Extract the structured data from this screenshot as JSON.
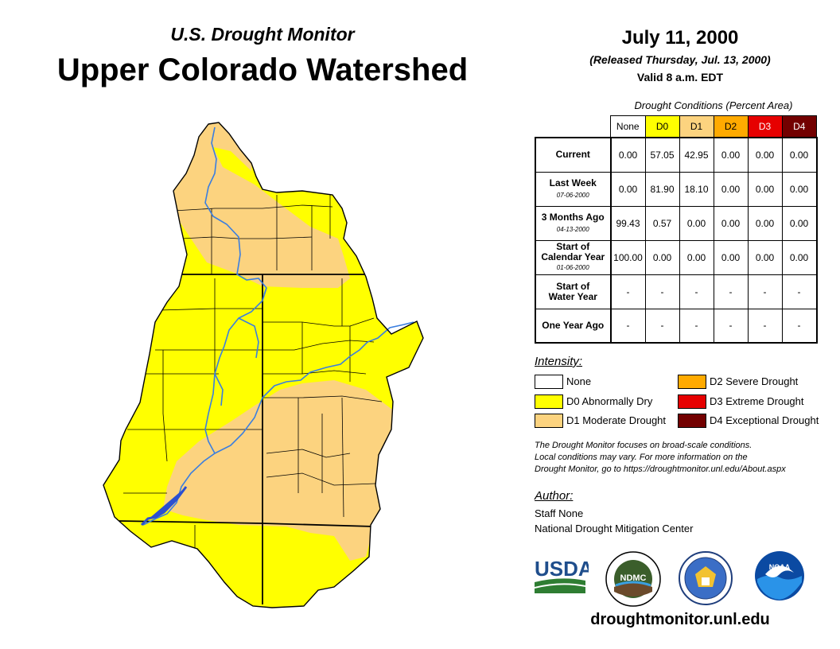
{
  "header": {
    "subtitle": "U.S. Drought Monitor",
    "title": "Upper Colorado Watershed",
    "date": "July 11, 2000",
    "released": "(Released Thursday, Jul. 13, 2000)",
    "valid": "Valid 8 a.m. EDT"
  },
  "table": {
    "caption": "Drought Conditions (Percent Area)",
    "columns": [
      "None",
      "D0",
      "D1",
      "D2",
      "D3",
      "D4"
    ],
    "rows": [
      {
        "label": "Current",
        "date": "",
        "values": [
          "0.00",
          "57.05",
          "42.95",
          "0.00",
          "0.00",
          "0.00"
        ]
      },
      {
        "label": "Last Week",
        "date": "07-06-2000",
        "values": [
          "0.00",
          "81.90",
          "18.10",
          "0.00",
          "0.00",
          "0.00"
        ]
      },
      {
        "label": "3 Months Ago",
        "date": "04-13-2000",
        "values": [
          "99.43",
          "0.57",
          "0.00",
          "0.00",
          "0.00",
          "0.00"
        ]
      },
      {
        "label_line1": "Start of",
        "label_line2": "Calendar Year",
        "date": "01-06-2000",
        "values": [
          "100.00",
          "0.00",
          "0.00",
          "0.00",
          "0.00",
          "0.00"
        ]
      },
      {
        "label_line1": "Start of",
        "label_line2": "Water Year",
        "date": "",
        "values": [
          "-",
          "-",
          "-",
          "-",
          "-",
          "-"
        ]
      },
      {
        "label": "One Year Ago",
        "date": "",
        "values": [
          "-",
          "-",
          "-",
          "-",
          "-",
          "-"
        ]
      }
    ]
  },
  "legend": {
    "title": "Intensity:",
    "items": [
      {
        "label": "None",
        "color": "#ffffff"
      },
      {
        "label": "D0 Abnormally Dry",
        "color": "#ffff00"
      },
      {
        "label": "D1 Moderate Drought",
        "color": "#fcd37f"
      },
      {
        "label": "D2 Severe Drought",
        "color": "#ffaa00"
      },
      {
        "label": "D3 Extreme Drought",
        "color": "#e60000"
      },
      {
        "label": "D4 Exceptional Drought",
        "color": "#730000"
      }
    ]
  },
  "note": {
    "line1": "The Drought Monitor focuses on broad-scale conditions.",
    "line2": "Local conditions may vary. For more information on the",
    "line3": "Drought Monitor, go to https://droughtmonitor.unl.edu/About.aspx"
  },
  "author": {
    "label": "Author:",
    "name": "Staff None",
    "org": "National Drought Mitigation Center"
  },
  "logos": {
    "usda": "USDA",
    "ndmc": "NDMC",
    "noaa": "NOAA"
  },
  "website": "droughtmonitor.unl.edu",
  "map": {
    "colors": {
      "d0": "#ffff00",
      "d1": "#fcd37f",
      "river": "#3a7ee0",
      "lake": "#2b4fd0"
    }
  }
}
